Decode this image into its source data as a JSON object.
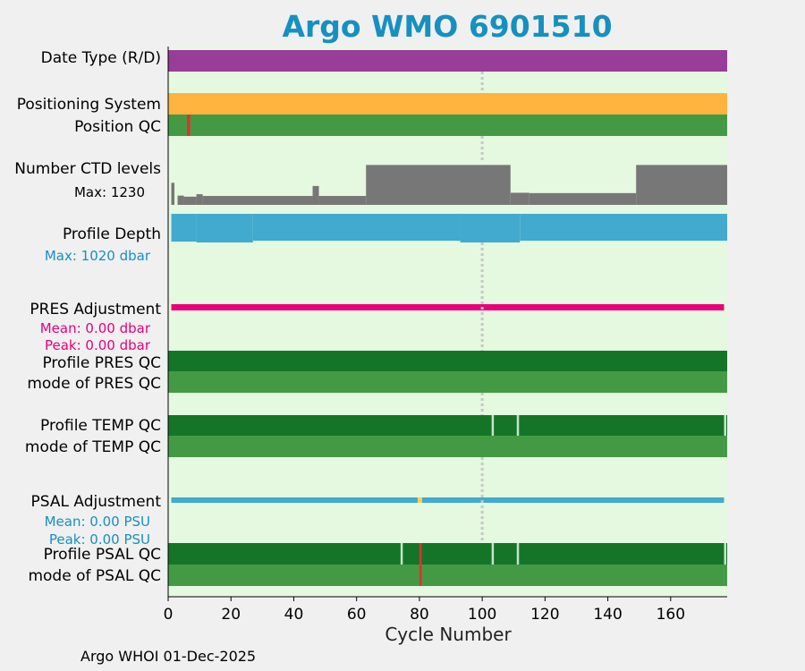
{
  "title": "Argo WMO 6901510",
  "footer": "Argo WHOI 01-Dec-2025",
  "chart_data": {
    "type": "heatmap",
    "x_label": "Cycle Number",
    "x_range": [
      0,
      178
    ],
    "x_ticks": [
      0,
      20,
      40,
      60,
      80,
      100,
      120,
      140,
      160
    ],
    "reference_line_cycle": 100,
    "colors": {
      "background": "#e5f8e0",
      "date_type": "#983d98",
      "positioning": "#ffb440",
      "qc_good_dark": "#147528",
      "qc_good_light": "#449a44",
      "qc_bad": "#e03030",
      "qc_probably_good": "#c8e2c8",
      "ctd": "#777777",
      "depth": "#42aace",
      "pres_adj": "#e8007a",
      "psal_adj": "#42aace",
      "psal_flag": "#ffd060",
      "refline": "#c4c8c8"
    },
    "rows": [
      {
        "label": "Date Type (R/D)"
      },
      {
        "label": "Positioning System"
      },
      {
        "label": "Position QC",
        "bad_cycles": [
          6
        ]
      },
      {
        "label": "Number CTD levels",
        "note": "Max: 1230"
      },
      {
        "label": "Profile Depth",
        "note": "Max: 1020 dbar"
      },
      {
        "label": "PRES Adjustment",
        "mean": "Mean: 0.00 dbar",
        "peak": "Peak: 0.00 dbar"
      },
      {
        "label": "Profile PRES QC"
      },
      {
        "label": "mode of PRES QC"
      },
      {
        "label": "Profile TEMP QC",
        "probably_good_cycles": [
          103,
          111,
          177
        ]
      },
      {
        "label": "mode of TEMP QC"
      },
      {
        "label": "PSAL Adjustment",
        "mean": "Mean: 0.00 PSU",
        "peak": "Peak: 0.00 PSU",
        "flag_cycles": [
          80
        ]
      },
      {
        "label": "Profile PSAL QC",
        "probably_good_cycles": [
          74,
          103,
          111,
          177
        ],
        "bad_cycles": [
          80
        ]
      },
      {
        "label": "mode of PSAL QC",
        "bad_cycles": [
          80
        ]
      }
    ],
    "ctd_levels_segments": [
      {
        "from": 1,
        "to": 2,
        "value": 620
      },
      {
        "from": 3,
        "to": 5,
        "value": 260
      },
      {
        "from": 5,
        "to": 9,
        "value": 230
      },
      {
        "from": 9,
        "to": 11,
        "value": 300
      },
      {
        "from": 11,
        "to": 46,
        "value": 250
      },
      {
        "from": 46,
        "to": 48,
        "value": 530
      },
      {
        "from": 48,
        "to": 63,
        "value": 250
      },
      {
        "from": 63,
        "to": 109,
        "value": 1120
      },
      {
        "from": 109,
        "to": 115,
        "value": 340
      },
      {
        "from": 115,
        "to": 149,
        "value": 330
      },
      {
        "from": 149,
        "to": 178,
        "value": 1120
      }
    ],
    "depth_segments": [
      {
        "from": 1,
        "to": 9,
        "value": 0.97
      },
      {
        "from": 9,
        "to": 27,
        "value": 1.0
      },
      {
        "from": 27,
        "to": 93,
        "value": 0.94
      },
      {
        "from": 93,
        "to": 112,
        "value": 1.0
      },
      {
        "from": 112,
        "to": 178,
        "value": 0.94
      }
    ]
  }
}
